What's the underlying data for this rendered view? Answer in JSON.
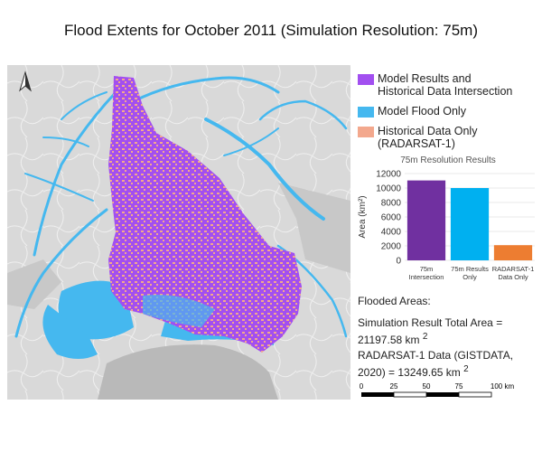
{
  "title": "Flood Extents for October 2011 (Simulation Resolution: 75m)",
  "map": {
    "north_label": "N"
  },
  "legend": {
    "items": [
      {
        "label": "Model Results and\nHistorical Data Intersection",
        "color": "#a24ff0"
      },
      {
        "label": "Model Flood Only",
        "color": "#45b8ef"
      },
      {
        "label": "Historical Data Only\n(RADARSAT-1)",
        "color": "#f3a88d"
      }
    ]
  },
  "chart_data": {
    "type": "bar",
    "title": "75m Resolution Results",
    "ylabel": "Area (km²)",
    "categories": [
      "75m\nIntersection",
      "75m Results\nOnly",
      "RADARSAT-1\nData Only"
    ],
    "values": [
      11050,
      10000,
      2100
    ],
    "colors": [
      "#7030a0",
      "#00b0f0",
      "#ed7d31"
    ],
    "ylim": [
      0,
      12000
    ],
    "yticks": [
      0,
      2000,
      4000,
      6000,
      8000,
      10000,
      12000
    ],
    "grid": true
  },
  "flooded": {
    "heading": "Flooded Areas:",
    "sim_line1": "Simulation Result Total Area =",
    "sim_line2": "21197.58 km",
    "radar_line1": "RADARSAT-1 Data (GISTDATA,",
    "radar_line2": "2020) = 13249.65 km",
    "sup": "2"
  },
  "scalebar": {
    "labels": [
      "0",
      "25",
      "50",
      "75",
      "100 km"
    ]
  }
}
